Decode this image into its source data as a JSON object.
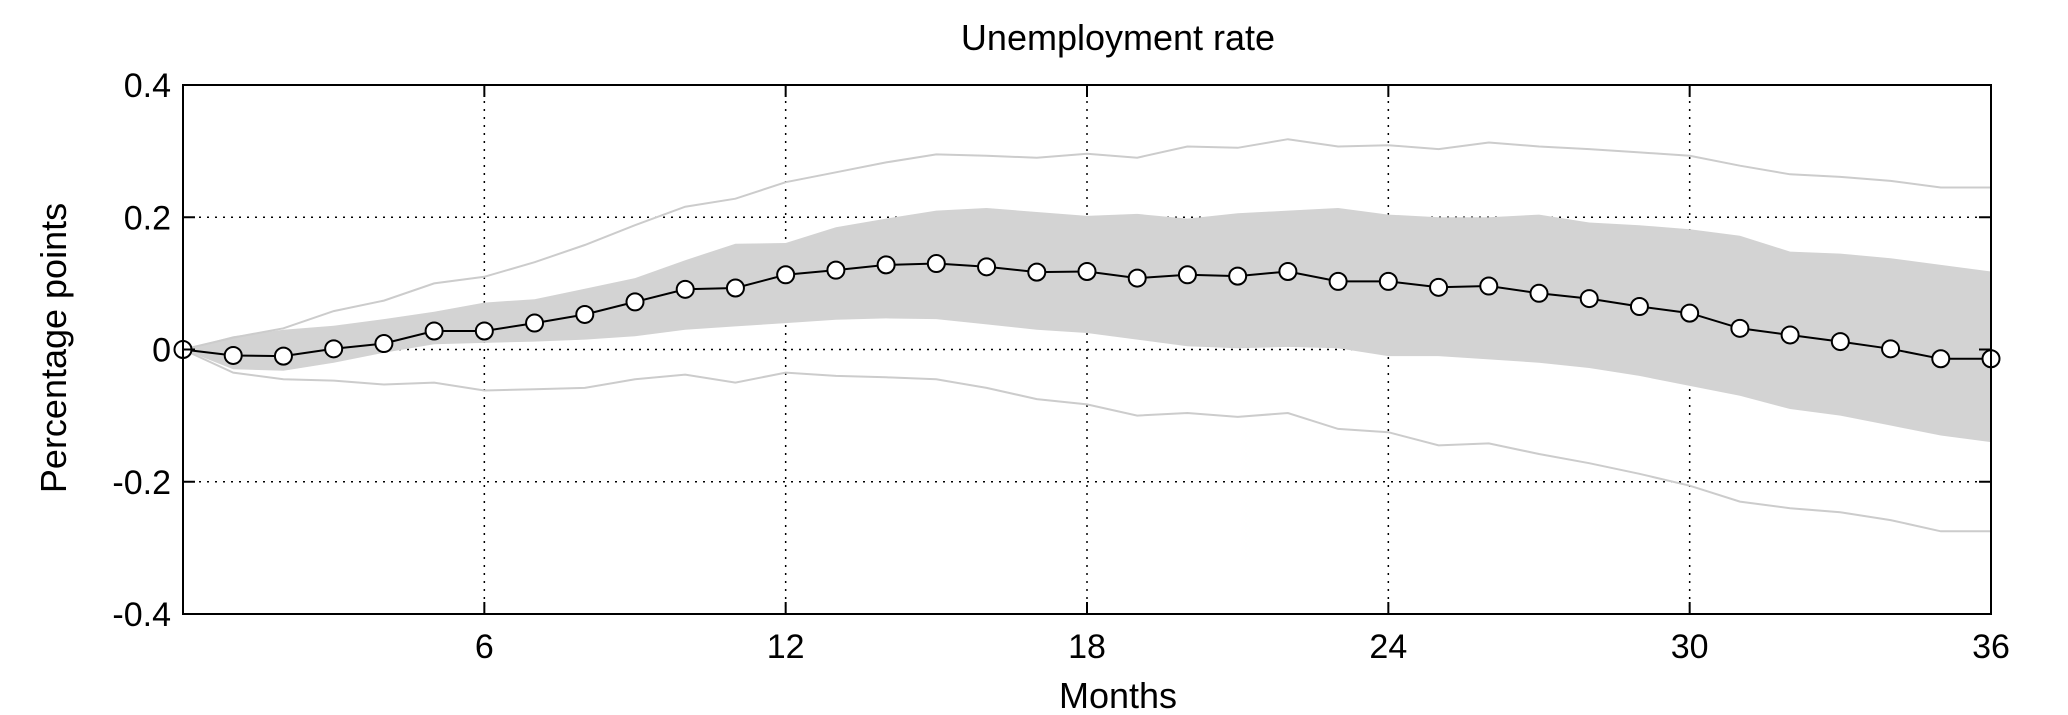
{
  "chart_data": {
    "type": "line",
    "title": "Unemployment rate",
    "xlabel": "Months",
    "ylabel": "Percentage points",
    "xlim": [
      0,
      36
    ],
    "ylim": [
      -0.4,
      0.4
    ],
    "x_ticks": [
      6,
      12,
      18,
      24,
      30,
      36
    ],
    "x_tick_labels": [
      "6",
      "12",
      "18",
      "24",
      "30",
      "36"
    ],
    "y_ticks": [
      0.4,
      0.2,
      0,
      -0.2,
      -0.4
    ],
    "y_tick_labels": [
      "0.4",
      "0.2",
      "0",
      "-0.2",
      "-0.4"
    ],
    "grid": "dotted",
    "x": [
      0,
      1,
      2,
      3,
      4,
      5,
      6,
      7,
      8,
      9,
      10,
      11,
      12,
      13,
      14,
      15,
      16,
      17,
      18,
      19,
      20,
      21,
      22,
      23,
      24,
      25,
      26,
      27,
      28,
      29,
      30,
      31,
      32,
      33,
      34,
      35,
      36
    ],
    "series": [
      {
        "values": [
          0.0,
          -0.009,
          -0.01,
          0.001,
          0.009,
          0.028,
          0.028,
          0.04,
          0.053,
          0.072,
          0.091,
          0.093,
          0.113,
          0.12,
          0.128,
          0.13,
          0.125,
          0.117,
          0.118,
          0.108,
          0.113,
          0.111,
          0.118,
          0.103,
          0.103,
          0.094,
          0.096,
          0.085,
          0.077,
          0.065,
          0.055,
          0.032,
          0.022,
          0.012,
          0.001,
          -0.014,
          -0.014
        ],
        "style": "line-circle-markers",
        "color": "#000000"
      },
      {
        "values": [
          0,
          -0.03,
          -0.032,
          -0.02,
          -0.005,
          0.008,
          0.01,
          0.012,
          0.015,
          0.02,
          0.03,
          0.035,
          0.04,
          0.045,
          0.047,
          0.046,
          0.038,
          0.03,
          0.025,
          0.015,
          0.005,
          0.002,
          0.004,
          0.002,
          -0.01,
          -0.01,
          -0.015,
          -0.02,
          -0.028,
          -0.04,
          -0.055,
          -0.07,
          -0.09,
          -0.1,
          -0.115,
          -0.13,
          -0.14
        ],
        "upper": [
          0,
          0.02,
          0.03,
          0.036,
          0.046,
          0.057,
          0.071,
          0.076,
          0.092,
          0.108,
          0.135,
          0.16,
          0.161,
          0.185,
          0.198,
          0.21,
          0.214,
          0.208,
          0.202,
          0.205,
          0.198,
          0.206,
          0.21,
          0.214,
          0.204,
          0.2,
          0.2,
          0.204,
          0.192,
          0.188,
          0.182,
          0.172,
          0.148,
          0.145,
          0.138,
          0.128,
          0.118
        ],
        "style": "shaded-band",
        "color": "#d3d3d3"
      },
      {
        "values": [
          0,
          0.018,
          0.032,
          0.058,
          0.074,
          0.1,
          0.11,
          0.132,
          0.158,
          0.188,
          0.216,
          0.228,
          0.253,
          0.268,
          0.283,
          0.295,
          0.293,
          0.29,
          0.296,
          0.29,
          0.307,
          0.305,
          0.318,
          0.307,
          0.309,
          0.303,
          0.313,
          0.307,
          0.303,
          0.298,
          0.293,
          0.278,
          0.265,
          0.261,
          0.255,
          0.245,
          0.245
        ],
        "style": "thin-line",
        "color": "#cccccc"
      },
      {
        "values": [
          0,
          -0.035,
          -0.045,
          -0.047,
          -0.053,
          -0.05,
          -0.062,
          -0.06,
          -0.058,
          -0.045,
          -0.038,
          -0.05,
          -0.035,
          -0.04,
          -0.042,
          -0.045,
          -0.058,
          -0.075,
          -0.083,
          -0.1,
          -0.096,
          -0.102,
          -0.096,
          -0.12,
          -0.125,
          -0.145,
          -0.142,
          -0.158,
          -0.172,
          -0.188,
          -0.206,
          -0.23,
          -0.24,
          -0.246,
          -0.258,
          -0.275,
          -0.275
        ],
        "style": "thin-line",
        "color": "#cccccc"
      }
    ]
  }
}
